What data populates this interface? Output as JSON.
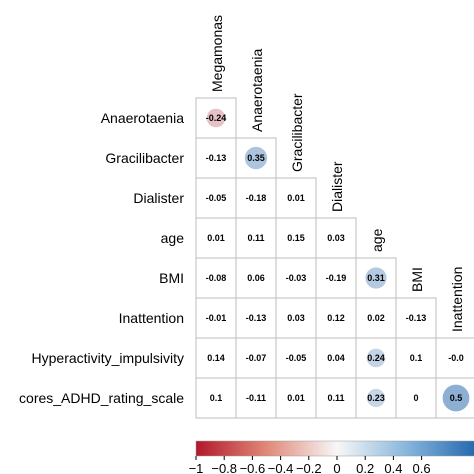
{
  "chart_data": {
    "type": "heatmap",
    "variables": [
      "Megamonas",
      "Anaerotaenia",
      "Gracilibacter",
      "Dialister",
      "age",
      "BMI",
      "Inattention",
      "Hyperactivity_impulsivity",
      "cores_ADHD_rating_scale"
    ],
    "column_labels": [
      "Megamonas",
      "Anaerotaenia",
      "Gracilibacter",
      "Dialister",
      "age",
      "BMI",
      "Inattention"
    ],
    "row_labels": [
      "Anaerotaenia",
      "Gracilibacter",
      "Dialister",
      "age",
      "BMI",
      "Inattention",
      "Hyperactivity_impulsivity",
      "cores_ADHD_rating_scale"
    ],
    "values": [
      [
        -0.24
      ],
      [
        -0.13,
        0.35
      ],
      [
        -0.05,
        -0.18,
        0.01
      ],
      [
        0.01,
        0.11,
        0.15,
        0.03
      ],
      [
        -0.08,
        0.06,
        -0.03,
        -0.19,
        0.31
      ],
      [
        -0.01,
        -0.13,
        0.03,
        0.12,
        0.02,
        -0.13
      ],
      [
        0.14,
        -0.07,
        -0.05,
        0.04,
        0.24,
        0.1,
        -0.0
      ],
      [
        0.1,
        -0.11,
        0.01,
        0.11,
        0.23,
        0,
        0.5
      ]
    ],
    "value_labels": [
      [
        "-0.24"
      ],
      [
        "-0.13",
        "0.35"
      ],
      [
        "-0.05",
        "-0.18",
        "0.01"
      ],
      [
        "0.01",
        "0.11",
        "0.15",
        "0.03"
      ],
      [
        "-0.08",
        "0.06",
        "-0.03",
        "-0.19",
        "0.31"
      ],
      [
        "-0.01",
        "-0.13",
        "0.03",
        "0.12",
        "0.02",
        "-0.13"
      ],
      [
        "0.14",
        "-0.07",
        "-0.05",
        "0.04",
        "0.24",
        "0.1",
        "-0.0"
      ],
      [
        "0.1",
        "-0.11",
        "0.01",
        "0.11",
        "0.23",
        "0",
        "0.5"
      ]
    ],
    "colorbar": {
      "range": [
        -1,
        1
      ],
      "ticks": [
        -1,
        -0.8,
        -0.6,
        -0.4,
        -0.2,
        0,
        0.2,
        0.4,
        0.6
      ],
      "tick_labels": [
        "−1",
        "−0.8",
        "−0.6",
        "−0.4",
        "−0.2",
        "0",
        "0.2",
        "0.4",
        "0.6"
      ],
      "negative_color": "#c0392b",
      "neutral_color": "#ffffff",
      "positive_color": "#2166ac"
    },
    "grid": true
  }
}
